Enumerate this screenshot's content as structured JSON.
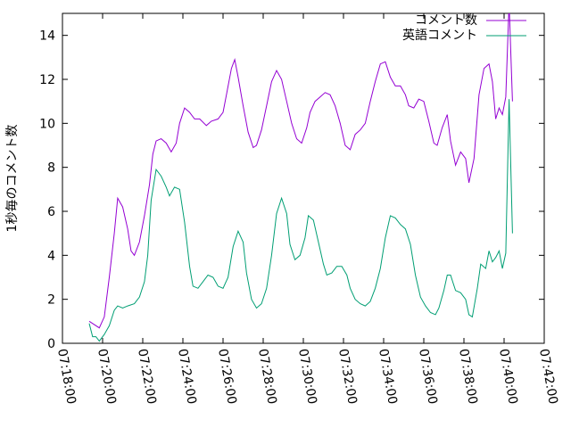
{
  "chart_data": {
    "type": "line",
    "ylabel": "1秒毎のコメント数",
    "ylim": [
      0,
      15
    ],
    "yticks": [
      0,
      2,
      4,
      6,
      8,
      10,
      12,
      14
    ],
    "xlim": [
      "07:18:00",
      "07:42:00"
    ],
    "xticks": [
      "07:18:00",
      "07:20:00",
      "07:22:00",
      "07:24:00",
      "07:26:00",
      "07:28:00",
      "07:30:00",
      "07:32:00",
      "07:34:00",
      "07:36:00",
      "07:38:00",
      "07:40:00",
      "07:42:00"
    ],
    "legend_position": "top-right",
    "grid": false,
    "series": [
      {
        "name": "コメント数",
        "color": "#9400d3",
        "points": [
          [
            "07:19:20",
            1.0
          ],
          [
            "07:19:50",
            0.7
          ],
          [
            "07:20:05",
            1.2
          ],
          [
            "07:20:20",
            3.0
          ],
          [
            "07:20:35",
            5.0
          ],
          [
            "07:20:45",
            6.6
          ],
          [
            "07:21:00",
            6.2
          ],
          [
            "07:21:15",
            5.2
          ],
          [
            "07:21:25",
            4.2
          ],
          [
            "07:21:35",
            4.0
          ],
          [
            "07:21:50",
            4.6
          ],
          [
            "07:22:05",
            5.8
          ],
          [
            "07:22:20",
            7.2
          ],
          [
            "07:22:30",
            8.6
          ],
          [
            "07:22:40",
            9.2
          ],
          [
            "07:22:55",
            9.3
          ],
          [
            "07:23:10",
            9.1
          ],
          [
            "07:23:25",
            8.7
          ],
          [
            "07:23:40",
            9.1
          ],
          [
            "07:23:50",
            10.0
          ],
          [
            "07:24:05",
            10.7
          ],
          [
            "07:24:20",
            10.5
          ],
          [
            "07:24:35",
            10.2
          ],
          [
            "07:24:50",
            10.2
          ],
          [
            "07:25:10",
            9.9
          ],
          [
            "07:25:25",
            10.1
          ],
          [
            "07:25:45",
            10.2
          ],
          [
            "07:26:00",
            10.5
          ],
          [
            "07:26:10",
            11.3
          ],
          [
            "07:26:25",
            12.5
          ],
          [
            "07:26:35",
            12.9
          ],
          [
            "07:26:45",
            12.1
          ],
          [
            "07:27:00",
            10.8
          ],
          [
            "07:27:15",
            9.6
          ],
          [
            "07:27:30",
            8.9
          ],
          [
            "07:27:40",
            9.0
          ],
          [
            "07:27:55",
            9.7
          ],
          [
            "07:28:10",
            10.8
          ],
          [
            "07:28:25",
            11.9
          ],
          [
            "07:28:40",
            12.4
          ],
          [
            "07:28:55",
            12.0
          ],
          [
            "07:29:10",
            11.0
          ],
          [
            "07:29:25",
            10.0
          ],
          [
            "07:29:40",
            9.3
          ],
          [
            "07:29:55",
            9.1
          ],
          [
            "07:30:10",
            9.8
          ],
          [
            "07:30:20",
            10.5
          ],
          [
            "07:30:35",
            11.0
          ],
          [
            "07:30:50",
            11.2
          ],
          [
            "07:31:05",
            11.4
          ],
          [
            "07:31:20",
            11.3
          ],
          [
            "07:31:35",
            10.8
          ],
          [
            "07:31:50",
            10.0
          ],
          [
            "07:32:05",
            9.0
          ],
          [
            "07:32:20",
            8.8
          ],
          [
            "07:32:35",
            9.5
          ],
          [
            "07:32:50",
            9.7
          ],
          [
            "07:33:05",
            10.0
          ],
          [
            "07:33:20",
            11.0
          ],
          [
            "07:33:35",
            11.9
          ],
          [
            "07:33:50",
            12.7
          ],
          [
            "07:34:05",
            12.8
          ],
          [
            "07:34:20",
            12.1
          ],
          [
            "07:34:35",
            11.7
          ],
          [
            "07:34:50",
            11.7
          ],
          [
            "07:35:05",
            11.3
          ],
          [
            "07:35:15",
            10.8
          ],
          [
            "07:35:30",
            10.7
          ],
          [
            "07:35:45",
            11.1
          ],
          [
            "07:36:00",
            11.0
          ],
          [
            "07:36:15",
            10.1
          ],
          [
            "07:36:30",
            9.1
          ],
          [
            "07:36:40",
            9.0
          ],
          [
            "07:36:55",
            9.8
          ],
          [
            "07:37:10",
            10.4
          ],
          [
            "07:37:20",
            9.2
          ],
          [
            "07:37:35",
            8.1
          ],
          [
            "07:37:50",
            8.7
          ],
          [
            "07:38:05",
            8.4
          ],
          [
            "07:38:15",
            7.3
          ],
          [
            "07:38:30",
            8.4
          ],
          [
            "07:38:45",
            11.3
          ],
          [
            "07:39:00",
            12.5
          ],
          [
            "07:39:15",
            12.7
          ],
          [
            "07:39:25",
            11.9
          ],
          [
            "07:39:35",
            10.2
          ],
          [
            "07:39:45",
            10.7
          ],
          [
            "07:39:55",
            10.4
          ],
          [
            "07:40:05",
            11.2
          ],
          [
            "07:40:15",
            15.5
          ],
          [
            "07:40:25",
            11.0
          ]
        ]
      },
      {
        "name": "英語コメント",
        "color": "#009e73",
        "points": [
          [
            "07:19:20",
            0.9
          ],
          [
            "07:19:30",
            0.3
          ],
          [
            "07:19:40",
            0.3
          ],
          [
            "07:19:50",
            0.1
          ],
          [
            "07:20:05",
            0.4
          ],
          [
            "07:20:20",
            0.8
          ],
          [
            "07:20:35",
            1.5
          ],
          [
            "07:20:45",
            1.7
          ],
          [
            "07:21:00",
            1.6
          ],
          [
            "07:21:15",
            1.7
          ],
          [
            "07:21:35",
            1.8
          ],
          [
            "07:21:50",
            2.1
          ],
          [
            "07:22:05",
            2.8
          ],
          [
            "07:22:15",
            4.0
          ],
          [
            "07:22:25",
            6.5
          ],
          [
            "07:22:40",
            7.9
          ],
          [
            "07:22:55",
            7.6
          ],
          [
            "07:23:10",
            7.1
          ],
          [
            "07:23:20",
            6.7
          ],
          [
            "07:23:35",
            7.1
          ],
          [
            "07:23:50",
            7.0
          ],
          [
            "07:24:05",
            5.5
          ],
          [
            "07:24:20",
            3.5
          ],
          [
            "07:24:30",
            2.6
          ],
          [
            "07:24:45",
            2.5
          ],
          [
            "07:25:00",
            2.8
          ],
          [
            "07:25:15",
            3.1
          ],
          [
            "07:25:30",
            3.0
          ],
          [
            "07:25:45",
            2.6
          ],
          [
            "07:26:00",
            2.5
          ],
          [
            "07:26:15",
            3.0
          ],
          [
            "07:26:30",
            4.4
          ],
          [
            "07:26:45",
            5.1
          ],
          [
            "07:27:00",
            4.6
          ],
          [
            "07:27:10",
            3.2
          ],
          [
            "07:27:25",
            2.0
          ],
          [
            "07:27:40",
            1.6
          ],
          [
            "07:27:55",
            1.8
          ],
          [
            "07:28:10",
            2.5
          ],
          [
            "07:28:25",
            4.0
          ],
          [
            "07:28:40",
            5.9
          ],
          [
            "07:28:55",
            6.6
          ],
          [
            "07:29:10",
            5.9
          ],
          [
            "07:29:20",
            4.5
          ],
          [
            "07:29:35",
            3.8
          ],
          [
            "07:29:50",
            4.0
          ],
          [
            "07:30:05",
            4.8
          ],
          [
            "07:30:15",
            5.8
          ],
          [
            "07:30:30",
            5.6
          ],
          [
            "07:30:45",
            4.6
          ],
          [
            "07:31:00",
            3.6
          ],
          [
            "07:31:10",
            3.1
          ],
          [
            "07:31:25",
            3.2
          ],
          [
            "07:31:40",
            3.5
          ],
          [
            "07:31:55",
            3.5
          ],
          [
            "07:32:10",
            3.1
          ],
          [
            "07:32:20",
            2.5
          ],
          [
            "07:32:35",
            2.0
          ],
          [
            "07:32:50",
            1.8
          ],
          [
            "07:33:05",
            1.7
          ],
          [
            "07:33:20",
            1.9
          ],
          [
            "07:33:35",
            2.5
          ],
          [
            "07:33:50",
            3.4
          ],
          [
            "07:34:05",
            4.8
          ],
          [
            "07:34:20",
            5.8
          ],
          [
            "07:34:35",
            5.7
          ],
          [
            "07:34:50",
            5.4
          ],
          [
            "07:35:05",
            5.2
          ],
          [
            "07:35:20",
            4.5
          ],
          [
            "07:35:35",
            3.1
          ],
          [
            "07:35:50",
            2.1
          ],
          [
            "07:36:05",
            1.7
          ],
          [
            "07:36:20",
            1.4
          ],
          [
            "07:36:35",
            1.3
          ],
          [
            "07:36:45",
            1.6
          ],
          [
            "07:37:00",
            2.4
          ],
          [
            "07:37:10",
            3.1
          ],
          [
            "07:37:20",
            3.1
          ],
          [
            "07:37:35",
            2.4
          ],
          [
            "07:37:50",
            2.3
          ],
          [
            "07:38:05",
            2.0
          ],
          [
            "07:38:15",
            1.3
          ],
          [
            "07:38:25",
            1.2
          ],
          [
            "07:38:40",
            2.5
          ],
          [
            "07:38:50",
            3.6
          ],
          [
            "07:39:05",
            3.4
          ],
          [
            "07:39:15",
            4.2
          ],
          [
            "07:39:25",
            3.7
          ],
          [
            "07:39:35",
            3.9
          ],
          [
            "07:39:45",
            4.2
          ],
          [
            "07:39:55",
            3.4
          ],
          [
            "07:40:05",
            4.1
          ],
          [
            "07:40:15",
            11.1
          ],
          [
            "07:40:25",
            5.0
          ]
        ]
      }
    ]
  }
}
